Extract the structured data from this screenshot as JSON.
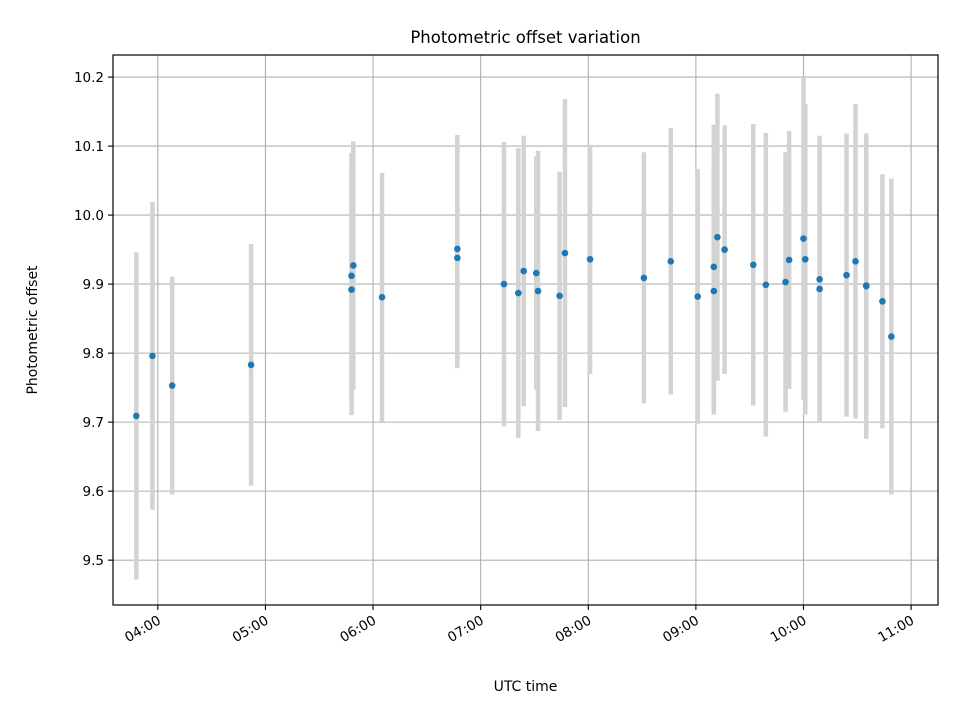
{
  "chart_data": {
    "type": "scatter",
    "title": "Photometric offset variation",
    "xlabel": "UTC time",
    "ylabel": "Photometric offset",
    "x_ticks": [
      "04:00",
      "05:00",
      "06:00",
      "07:00",
      "08:00",
      "09:00",
      "10:00",
      "11:00"
    ],
    "y_ticks": [
      "9.5",
      "9.6",
      "9.7",
      "9.8",
      "9.9",
      "10.0",
      "10.1",
      "10.2"
    ],
    "xlim": [
      "03:35",
      "11:15"
    ],
    "ylim": [
      9.435,
      10.232
    ],
    "grid": true,
    "legend": "none",
    "colors": {
      "points": "#1f77b4",
      "errorbars": "#d3d3d3",
      "grid": "#b0b0b0"
    },
    "points": [
      {
        "t": "03:48",
        "y": 9.709,
        "err": 0.237
      },
      {
        "t": "03:57",
        "y": 9.796,
        "err": 0.223
      },
      {
        "t": "04:08",
        "y": 9.753,
        "err": 0.158
      },
      {
        "t": "04:52",
        "y": 9.783,
        "err": 0.175
      },
      {
        "t": "05:48",
        "y": 9.892,
        "err": 0.182
      },
      {
        "t": "05:48",
        "y": 9.912,
        "err": 0.178
      },
      {
        "t": "05:49",
        "y": 9.927,
        "err": 0.18
      },
      {
        "t": "06:05",
        "y": 9.881,
        "err": 0.18
      },
      {
        "t": "06:47",
        "y": 9.938,
        "err": 0.16
      },
      {
        "t": "06:47",
        "y": 9.951,
        "err": 0.165
      },
      {
        "t": "07:13",
        "y": 9.9,
        "err": 0.206
      },
      {
        "t": "07:21",
        "y": 9.887,
        "err": 0.21
      },
      {
        "t": "07:24",
        "y": 9.919,
        "err": 0.196
      },
      {
        "t": "07:31",
        "y": 9.916,
        "err": 0.169
      },
      {
        "t": "07:32",
        "y": 9.89,
        "err": 0.203
      },
      {
        "t": "07:44",
        "y": 9.883,
        "err": 0.18
      },
      {
        "t": "07:47",
        "y": 9.945,
        "err": 0.223
      },
      {
        "t": "08:01",
        "y": 9.936,
        "err": 0.166
      },
      {
        "t": "08:31",
        "y": 9.909,
        "err": 0.182
      },
      {
        "t": "08:46",
        "y": 9.933,
        "err": 0.193
      },
      {
        "t": "09:01",
        "y": 9.882,
        "err": 0.185
      },
      {
        "t": "09:10",
        "y": 9.89,
        "err": 0.179
      },
      {
        "t": "09:10",
        "y": 9.925,
        "err": 0.206
      },
      {
        "t": "09:12",
        "y": 9.968,
        "err": 0.208
      },
      {
        "t": "09:16",
        "y": 9.95,
        "err": 0.18
      },
      {
        "t": "09:32",
        "y": 9.928,
        "err": 0.204
      },
      {
        "t": "09:39",
        "y": 9.899,
        "err": 0.22
      },
      {
        "t": "09:50",
        "y": 9.903,
        "err": 0.188
      },
      {
        "t": "09:52",
        "y": 9.935,
        "err": 0.187
      },
      {
        "t": "10:00",
        "y": 9.966,
        "err": 0.234
      },
      {
        "t": "10:01",
        "y": 9.936,
        "err": 0.225
      },
      {
        "t": "10:09",
        "y": 9.907,
        "err": 0.208
      },
      {
        "t": "10:09",
        "y": 9.893,
        "err": 0.193
      },
      {
        "t": "10:24",
        "y": 9.913,
        "err": 0.205
      },
      {
        "t": "10:29",
        "y": 9.933,
        "err": 0.228
      },
      {
        "t": "10:35",
        "y": 9.897,
        "err": 0.221
      },
      {
        "t": "10:35",
        "y": 9.898,
        "err": 0.22
      },
      {
        "t": "10:44",
        "y": 9.875,
        "err": 0.184
      },
      {
        "t": "10:49",
        "y": 9.824,
        "err": 0.229
      }
    ]
  }
}
